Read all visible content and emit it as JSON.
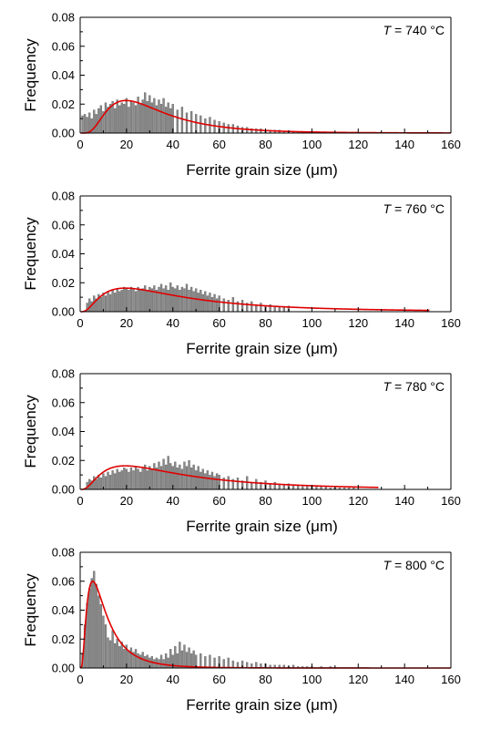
{
  "chart_data": [
    {
      "type": "bar",
      "annotation": {
        "var": "T",
        "text": " = 740 °C"
      },
      "xlabel": "Ferrite grain size (μm)",
      "ylabel": "Frequency",
      "xlim": [
        0,
        160
      ],
      "ylim": [
        0,
        0.08
      ],
      "xticks": [
        "0",
        "20",
        "40",
        "60",
        "80",
        "100",
        "120",
        "140",
        "160"
      ],
      "yticks": [
        "0.00",
        "0.02",
        "0.04",
        "0.06",
        "0.08"
      ],
      "bar_color": "#888888",
      "fit_color": "#e00000",
      "bins_x": [
        1,
        2,
        3,
        4,
        5,
        6,
        7,
        8,
        9,
        10,
        11,
        12,
        13,
        14,
        15,
        16,
        17,
        18,
        19,
        20,
        21,
        22,
        23,
        24,
        25,
        26,
        27,
        28,
        29,
        30,
        31,
        32,
        33,
        34,
        35,
        36,
        37,
        38,
        39,
        40,
        42,
        44,
        46,
        48,
        50,
        52,
        54,
        56,
        58,
        60,
        62,
        64,
        66,
        68,
        70,
        72,
        74,
        76,
        78,
        80,
        82,
        84,
        86,
        88,
        90,
        92,
        94,
        96,
        98,
        100,
        102,
        104,
        106,
        108,
        110,
        112,
        114,
        116,
        118,
        120
      ],
      "bins_y": [
        0.012,
        0.013,
        0.011,
        0.014,
        0.01,
        0.016,
        0.013,
        0.017,
        0.019,
        0.015,
        0.021,
        0.018,
        0.02,
        0.022,
        0.017,
        0.023,
        0.019,
        0.021,
        0.02,
        0.024,
        0.018,
        0.022,
        0.021,
        0.019,
        0.025,
        0.02,
        0.023,
        0.028,
        0.022,
        0.026,
        0.021,
        0.024,
        0.019,
        0.023,
        0.02,
        0.024,
        0.018,
        0.021,
        0.017,
        0.02,
        0.016,
        0.018,
        0.014,
        0.015,
        0.013,
        0.012,
        0.01,
        0.011,
        0.009,
        0.008,
        0.007,
        0.006,
        0.006,
        0.005,
        0.004,
        0.004,
        0.003,
        0.003,
        0.003,
        0.002,
        0.002,
        0.002,
        0.002,
        0.001,
        0.001,
        0.001,
        0.001,
        0.001,
        0.001,
        0.001,
        0.001,
        0.0005,
        0.0005,
        0.0005,
        0.0005,
        0.0005,
        0.0005,
        0.0005,
        0.0005,
        0.0005
      ],
      "fit": {
        "model": "lognormal",
        "median": 29,
        "sigma": 0.62,
        "peak": 0.0225,
        "x_end": 160
      }
    },
    {
      "type": "bar",
      "annotation": {
        "var": "T",
        "text": " = 760 °C"
      },
      "xlabel": "Ferrite grain size (μm)",
      "ylabel": "Frequency",
      "xlim": [
        0,
        160
      ],
      "ylim": [
        0,
        0.08
      ],
      "xticks": [
        "0",
        "20",
        "40",
        "60",
        "80",
        "100",
        "120",
        "140",
        "160"
      ],
      "yticks": [
        "0.00",
        "0.02",
        "0.04",
        "0.06",
        "0.08"
      ],
      "bar_color": "#888888",
      "fit_color": "#e00000",
      "bins_x": [
        3,
        4,
        5,
        6,
        7,
        8,
        9,
        10,
        11,
        12,
        13,
        14,
        15,
        16,
        17,
        18,
        19,
        20,
        21,
        22,
        23,
        24,
        25,
        26,
        27,
        28,
        29,
        30,
        31,
        32,
        33,
        34,
        35,
        36,
        37,
        38,
        39,
        40,
        41,
        42,
        43,
        44,
        45,
        46,
        47,
        48,
        49,
        50,
        51,
        52,
        53,
        54,
        55,
        56,
        57,
        58,
        59,
        60,
        62,
        64,
        66,
        68,
        70,
        72,
        74,
        76,
        78,
        80,
        82,
        84,
        86,
        88,
        90
      ],
      "bins_y": [
        0.006,
        0.009,
        0.007,
        0.011,
        0.009,
        0.012,
        0.01,
        0.013,
        0.011,
        0.014,
        0.012,
        0.015,
        0.013,
        0.016,
        0.014,
        0.015,
        0.017,
        0.016,
        0.015,
        0.017,
        0.016,
        0.014,
        0.017,
        0.015,
        0.016,
        0.018,
        0.015,
        0.017,
        0.016,
        0.018,
        0.015,
        0.017,
        0.019,
        0.016,
        0.018,
        0.015,
        0.02,
        0.017,
        0.016,
        0.018,
        0.015,
        0.017,
        0.016,
        0.019,
        0.015,
        0.017,
        0.014,
        0.016,
        0.013,
        0.015,
        0.012,
        0.014,
        0.011,
        0.013,
        0.01,
        0.012,
        0.009,
        0.011,
        0.009,
        0.008,
        0.01,
        0.007,
        0.008,
        0.006,
        0.007,
        0.005,
        0.006,
        0.004,
        0.005,
        0.004,
        0.003,
        0.003,
        0.004
      ],
      "fit": {
        "model": "lognormal",
        "median": 40,
        "sigma": 0.85,
        "peak": 0.0163,
        "x_end": 151
      }
    },
    {
      "type": "bar",
      "annotation": {
        "var": "T",
        "text": " = 780 °C"
      },
      "xlabel": "Ferrite grain size (μm)",
      "ylabel": "Frequency",
      "xlim": [
        0,
        160
      ],
      "ylim": [
        0,
        0.08
      ],
      "xticks": [
        "0",
        "20",
        "40",
        "60",
        "80",
        "100",
        "120",
        "140",
        "160"
      ],
      "yticks": [
        "0.00",
        "0.02",
        "0.04",
        "0.06",
        "0.08"
      ],
      "bar_color": "#888888",
      "fit_color": "#e00000",
      "bins_x": [
        3,
        4,
        5,
        6,
        7,
        8,
        9,
        10,
        11,
        12,
        13,
        14,
        15,
        16,
        17,
        18,
        19,
        20,
        21,
        22,
        23,
        24,
        25,
        26,
        27,
        28,
        29,
        30,
        31,
        32,
        33,
        34,
        35,
        36,
        37,
        38,
        39,
        40,
        41,
        42,
        43,
        44,
        45,
        46,
        47,
        48,
        49,
        50,
        51,
        52,
        53,
        54,
        55,
        56,
        57,
        58,
        59,
        60,
        62,
        64,
        66,
        68,
        70,
        72,
        74,
        76,
        78,
        80,
        82,
        84,
        86,
        88,
        90,
        92,
        94,
        96,
        98,
        100,
        102,
        104,
        106,
        108,
        110,
        112,
        114,
        116,
        118,
        120
      ],
      "bins_y": [
        0.005,
        0.007,
        0.006,
        0.009,
        0.007,
        0.01,
        0.008,
        0.011,
        0.009,
        0.012,
        0.01,
        0.013,
        0.011,
        0.014,
        0.012,
        0.013,
        0.015,
        0.014,
        0.012,
        0.015,
        0.013,
        0.016,
        0.014,
        0.012,
        0.015,
        0.017,
        0.013,
        0.016,
        0.014,
        0.018,
        0.015,
        0.019,
        0.016,
        0.021,
        0.017,
        0.023,
        0.018,
        0.016,
        0.019,
        0.015,
        0.017,
        0.014,
        0.019,
        0.016,
        0.02,
        0.015,
        0.017,
        0.013,
        0.016,
        0.012,
        0.014,
        0.011,
        0.013,
        0.01,
        0.012,
        0.009,
        0.011,
        0.01,
        0.008,
        0.009,
        0.007,
        0.008,
        0.006,
        0.009,
        0.005,
        0.007,
        0.005,
        0.006,
        0.004,
        0.005,
        0.004,
        0.003,
        0.004,
        0.003,
        0.003,
        0.002,
        0.002,
        0.003,
        0.002,
        0.002,
        0.002,
        0.001,
        0.001,
        0.001,
        0.001,
        0.001,
        0.001
      ],
      "fit": {
        "model": "lognormal",
        "median": 40,
        "sigma": 0.85,
        "peak": 0.0163,
        "x_end": 129
      }
    },
    {
      "type": "bar",
      "annotation": {
        "var": "T",
        "text": " = 800 °C"
      },
      "xlabel": "Ferrite grain size (μm)",
      "ylabel": "Frequency",
      "xlim": [
        0,
        160
      ],
      "ylim": [
        0,
        0.08
      ],
      "xticks": [
        "0",
        "20",
        "40",
        "60",
        "80",
        "100",
        "120",
        "140",
        "160"
      ],
      "yticks": [
        "0.00",
        "0.02",
        "0.04",
        "0.06",
        "0.08"
      ],
      "bar_color": "#888888",
      "fit_color": "#e00000",
      "bins_x": [
        1,
        2,
        3,
        4,
        5,
        6,
        7,
        8,
        9,
        10,
        11,
        12,
        13,
        14,
        15,
        16,
        17,
        18,
        19,
        20,
        21,
        22,
        23,
        24,
        25,
        26,
        27,
        28,
        29,
        30,
        31,
        32,
        33,
        34,
        35,
        36,
        37,
        38,
        39,
        40,
        41,
        42,
        43,
        44,
        45,
        46,
        47,
        48,
        49,
        50,
        52,
        54,
        56,
        58,
        60,
        62,
        64,
        66,
        68,
        70,
        72,
        74,
        76,
        78,
        80,
        82,
        84,
        86,
        88,
        90,
        92,
        94,
        96,
        98,
        100,
        104,
        108
      ],
      "bins_y": [
        0.01,
        0.03,
        0.045,
        0.055,
        0.062,
        0.067,
        0.058,
        0.05,
        0.044,
        0.036,
        0.03,
        0.021,
        0.019,
        0.026,
        0.017,
        0.02,
        0.015,
        0.018,
        0.013,
        0.016,
        0.012,
        0.014,
        0.011,
        0.013,
        0.01,
        0.009,
        0.011,
        0.008,
        0.009,
        0.007,
        0.008,
        0.006,
        0.007,
        0.006,
        0.009,
        0.006,
        0.01,
        0.007,
        0.013,
        0.009,
        0.015,
        0.01,
        0.018,
        0.012,
        0.016,
        0.011,
        0.014,
        0.01,
        0.012,
        0.009,
        0.01,
        0.008,
        0.009,
        0.007,
        0.008,
        0.006,
        0.007,
        0.005,
        0.004,
        0.005,
        0.004,
        0.003,
        0.004,
        0.003,
        0.003,
        0.002,
        0.002,
        0.002,
        0.002,
        0.001,
        0.002,
        0.001,
        0.001,
        0.001,
        0.001,
        0.001,
        0.001
      ],
      "fit": {
        "model": "lognormal",
        "median": 9.5,
        "sigma": 0.75,
        "peak": 0.06,
        "x_end": 160
      }
    }
  ]
}
